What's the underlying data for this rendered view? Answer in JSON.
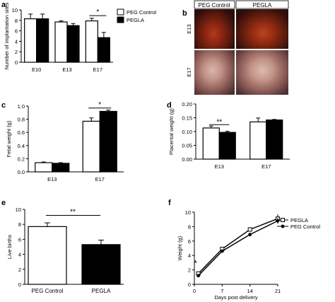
{
  "chart_data": [
    {
      "panel": "a",
      "type": "bar",
      "categories": [
        "E10",
        "E13",
        "E17"
      ],
      "series": [
        {
          "name": "PEG Control",
          "values": [
            8.3,
            7.7,
            7.9
          ],
          "errors": [
            0.9,
            0.2,
            0.5
          ]
        },
        {
          "name": "PEGLA",
          "values": [
            8.3,
            7.0,
            4.7
          ],
          "errors": [
            0.9,
            0.4,
            1.0
          ]
        }
      ],
      "ylabel": "Number of implantation sites",
      "ylim": [
        0,
        10
      ],
      "yticks": [
        0,
        2,
        4,
        6,
        8,
        10
      ],
      "legend": "top-right",
      "significance": [
        {
          "category": "E17",
          "label": "*"
        }
      ]
    },
    {
      "panel": "c",
      "type": "bar",
      "categories": [
        "E13",
        "E17"
      ],
      "series": [
        {
          "name": "PEG Control",
          "values": [
            0.14,
            0.77
          ],
          "errors": [
            0.01,
            0.05
          ]
        },
        {
          "name": "PEGLA",
          "values": [
            0.13,
            0.92
          ],
          "errors": [
            0.01,
            0.02
          ]
        }
      ],
      "ylabel": "Fetal weight (g)",
      "ylim": [
        0,
        1.0
      ],
      "yticks": [
        "0.0",
        "0.2",
        "0.4",
        "0.6",
        "0.8",
        "1.0"
      ],
      "significance": [
        {
          "category": "E17",
          "label": "*"
        }
      ]
    },
    {
      "panel": "d",
      "type": "bar",
      "categories": [
        "E13",
        "E17"
      ],
      "series": [
        {
          "name": "PEG Control",
          "values": [
            0.113,
            0.135
          ],
          "errors": [
            0.007,
            0.014
          ]
        },
        {
          "name": "PEGLA",
          "values": [
            0.097,
            0.142
          ],
          "errors": [
            0.004,
            0.002
          ]
        }
      ],
      "ylabel": "Placental weight (g)",
      "ylim": [
        0,
        0.2
      ],
      "yticks": [
        "0.00",
        "0.05",
        "0.10",
        "0.15",
        "0.20"
      ],
      "significance": [
        {
          "category": "E13",
          "label": "**"
        }
      ]
    },
    {
      "panel": "e",
      "type": "bar",
      "categories": [
        "PEG Control",
        "PEGLA"
      ],
      "values": [
        7.7,
        5.3
      ],
      "errors": [
        0.5,
        0.6
      ],
      "colors": [
        "#ffffff",
        "#000000"
      ],
      "ylabel": "Live births",
      "ylim": [
        0,
        10
      ],
      "yticks": [
        0,
        2,
        4,
        6,
        8,
        10
      ],
      "significance": [
        {
          "label": "**"
        }
      ]
    },
    {
      "panel": "f",
      "type": "line",
      "x": [
        1,
        7,
        14,
        21
      ],
      "series": [
        {
          "name": "PEGLA",
          "values": [
            1.5,
            4.9,
            7.6,
            9.1
          ],
          "errors": [
            0.15,
            0.2,
            0.3,
            0.6
          ],
          "marker": "open-square"
        },
        {
          "name": "PEG Control",
          "values": [
            1.2,
            4.6,
            6.9,
            8.8
          ],
          "errors": [
            0.1,
            0.2,
            0.25,
            0.4
          ],
          "marker": "filled-circle"
        }
      ],
      "xlabel": "Days post delivery",
      "ylabel": "Weight (g)",
      "xlim": [
        0,
        21
      ],
      "ylim": [
        0,
        10
      ],
      "xticks": [
        0,
        7,
        14,
        21
      ],
      "yticks": [
        0,
        2,
        4,
        6,
        8,
        10
      ],
      "legend": "top-right",
      "annotations": [
        {
          "x": 1,
          "label": "*"
        }
      ]
    }
  ],
  "panel_b": {
    "letter": "b",
    "columns": [
      "PEG Control",
      "PEGLA"
    ],
    "rows": [
      "E13",
      "E17"
    ]
  },
  "panel_letters": {
    "a": "a",
    "c": "c",
    "d": "d",
    "e": "e",
    "f": "f"
  }
}
